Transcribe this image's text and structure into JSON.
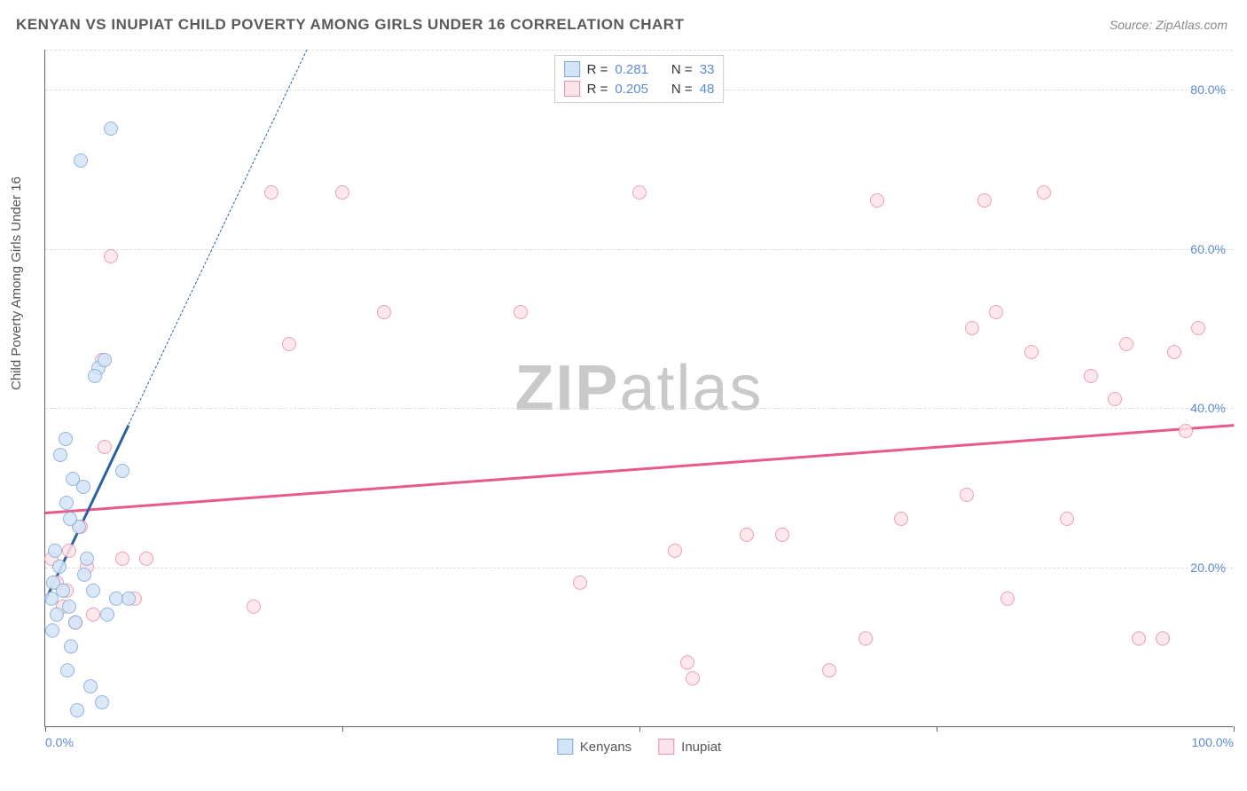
{
  "title": "KENYAN VS INUPIAT CHILD POVERTY AMONG GIRLS UNDER 16 CORRELATION CHART",
  "source": "Source: ZipAtlas.com",
  "ylabel": "Child Poverty Among Girls Under 16",
  "watermark_bold": "ZIP",
  "watermark_light": "atlas",
  "chart": {
    "type": "scatter",
    "xlim": [
      0,
      100
    ],
    "ylim": [
      0,
      85
    ],
    "x_ticks": [
      0,
      25,
      50,
      75,
      100
    ],
    "x_tick_labels": {
      "0": "0.0%",
      "100": "100.0%"
    },
    "y_gridlines": [
      20,
      40,
      60,
      80
    ],
    "y_tick_labels": {
      "20": "20.0%",
      "40": "40.0%",
      "60": "60.0%",
      "80": "80.0%"
    },
    "background_color": "#ffffff",
    "grid_color": "#dddddd",
    "axis_color": "#666666",
    "tick_label_color": "#5b8bd4",
    "title_color": "#5a5a5a",
    "title_fontsize": 17,
    "label_fontsize": 15,
    "tick_fontsize": 14
  },
  "series": {
    "kenyans": {
      "label": "Kenyans",
      "r": "0.281",
      "n": "33",
      "marker_fill": "#d4e4f7",
      "marker_stroke": "#7fa8d9",
      "marker_size": 16,
      "trend": {
        "x1": 0,
        "y1": 16,
        "x2": 7,
        "y2": 38,
        "color": "#2e5fa3",
        "width": 3,
        "dash": false
      },
      "trend_ext": {
        "x1": 7,
        "y1": 38,
        "x2": 22,
        "y2": 85,
        "color": "#2e5fa3",
        "width": 1,
        "dash": true
      },
      "points": [
        [
          0.5,
          16
        ],
        [
          0.7,
          18
        ],
        [
          1.0,
          14
        ],
        [
          1.2,
          20
        ],
        [
          0.8,
          22
        ],
        [
          1.5,
          17
        ],
        [
          1.8,
          28
        ],
        [
          2.0,
          15
        ],
        [
          2.3,
          31
        ],
        [
          2.5,
          13
        ],
        [
          1.3,
          34
        ],
        [
          0.6,
          12
        ],
        [
          2.8,
          25
        ],
        [
          3.2,
          30
        ],
        [
          3.5,
          21
        ],
        [
          1.7,
          36
        ],
        [
          4.0,
          17
        ],
        [
          2.2,
          10
        ],
        [
          5.2,
          14
        ],
        [
          4.5,
          45
        ],
        [
          5.0,
          46
        ],
        [
          6.0,
          16
        ],
        [
          6.5,
          32
        ],
        [
          7.0,
          16
        ],
        [
          3.8,
          5
        ],
        [
          2.7,
          2
        ],
        [
          1.9,
          7
        ],
        [
          4.2,
          44
        ],
        [
          5.5,
          75
        ],
        [
          3.0,
          71
        ],
        [
          4.8,
          3
        ],
        [
          3.3,
          19
        ],
        [
          2.1,
          26
        ]
      ]
    },
    "inupiat": {
      "label": "Inupiat",
      "r": "0.205",
      "n": "48",
      "marker_fill": "#fce4ea",
      "marker_stroke": "#e890a8",
      "marker_size": 16,
      "trend": {
        "x1": 0,
        "y1": 27,
        "x2": 100,
        "y2": 38,
        "color": "#e85a8a",
        "width": 3,
        "dash": false
      },
      "points": [
        [
          0.5,
          21
        ],
        [
          1.0,
          18
        ],
        [
          1.5,
          15
        ],
        [
          2.0,
          22
        ],
        [
          2.5,
          13
        ],
        [
          3.0,
          25
        ],
        [
          1.8,
          17
        ],
        [
          3.5,
          20
        ],
        [
          4.0,
          14
        ],
        [
          5.0,
          35
        ],
        [
          5.5,
          59
        ],
        [
          6.5,
          21
        ],
        [
          7.5,
          16
        ],
        [
          4.8,
          46
        ],
        [
          8.5,
          21
        ],
        [
          17.5,
          15
        ],
        [
          19.0,
          67
        ],
        [
          20.5,
          48
        ],
        [
          25.0,
          67
        ],
        [
          28.5,
          52
        ],
        [
          40.0,
          52
        ],
        [
          45.0,
          18
        ],
        [
          50.0,
          67
        ],
        [
          53.0,
          22
        ],
        [
          54.0,
          8
        ],
        [
          54.5,
          6
        ],
        [
          59.0,
          24
        ],
        [
          62.0,
          24
        ],
        [
          66.0,
          7
        ],
        [
          69.0,
          11
        ],
        [
          70.0,
          66
        ],
        [
          72.0,
          26
        ],
        [
          77.5,
          29
        ],
        [
          78.0,
          50
        ],
        [
          79.0,
          66
        ],
        [
          80.0,
          52
        ],
        [
          81.0,
          16
        ],
        [
          83.0,
          47
        ],
        [
          84.0,
          67
        ],
        [
          86.0,
          26
        ],
        [
          88.0,
          44
        ],
        [
          90.0,
          41
        ],
        [
          91.0,
          48
        ],
        [
          92.0,
          11
        ],
        [
          94.0,
          11
        ],
        [
          95.0,
          47
        ],
        [
          96.0,
          37
        ],
        [
          97.0,
          50
        ]
      ]
    }
  },
  "legend_top": {
    "r_label": "R  =",
    "n_label": "N  =",
    "border": "#cccccc"
  },
  "legend_bottom_labels": [
    "Kenyans",
    "Inupiat"
  ]
}
